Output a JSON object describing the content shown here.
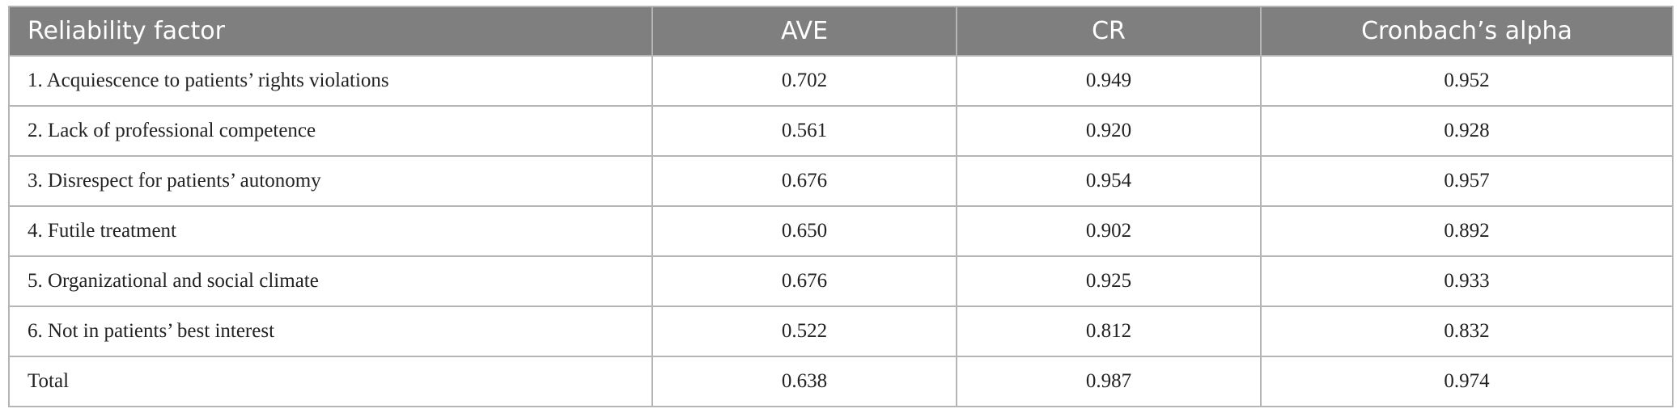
{
  "table": {
    "header": [
      "Reliability factor",
      "AVE",
      "CR",
      "Cronbach’s alpha"
    ],
    "rows": [
      [
        "1. Acquiescence to patients’ rights violations",
        "0.702",
        "0.949",
        "0.952"
      ],
      [
        "2. Lack of professional competence",
        "0.561",
        "0.920",
        "0.928"
      ],
      [
        "3. Disrespect for patients’ autonomy",
        "0.676",
        "0.954",
        "0.957"
      ],
      [
        "4. Futile treatment",
        "0.650",
        "0.902",
        "0.892"
      ],
      [
        "5. Organizational and social climate",
        "0.676",
        "0.925",
        "0.933"
      ],
      [
        "6. Not in patients’ best interest",
        "0.522",
        "0.812",
        "0.832"
      ],
      [
        "Total",
        "0.638",
        "0.987",
        "0.974"
      ]
    ]
  }
}
